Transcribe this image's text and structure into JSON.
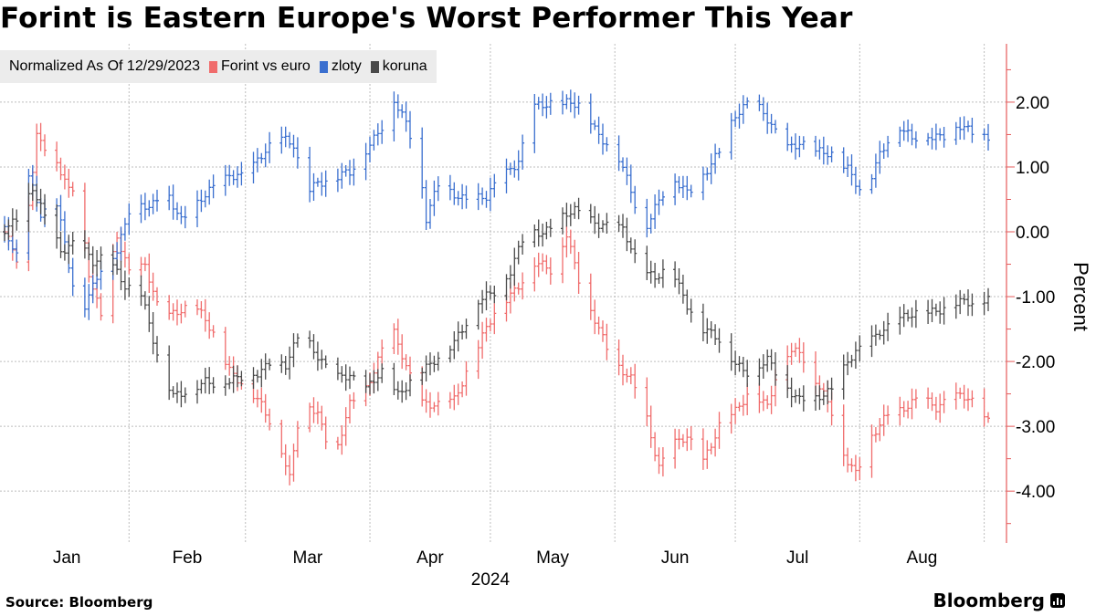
{
  "title": "Forint is Eastern Europe's Worst Performer This Year",
  "legend": {
    "caption": "Normalized As Of 12/29/2023",
    "items": [
      {
        "label": "Forint vs euro",
        "color": "#f06c6c"
      },
      {
        "label": "zloty",
        "color": "#3a6fcf"
      },
      {
        "label": "koruna",
        "color": "#4a4a4a"
      }
    ]
  },
  "footer": {
    "source": "Source: Bloomberg",
    "brand": "Bloomberg"
  },
  "colors": {
    "axis": "#e55a5a",
    "grid": "#bdbdbd"
  },
  "chart_data": {
    "type": "line",
    "style": "ohlc-bars",
    "title": "Forint is Eastern Europe's Worst Performer This Year",
    "subtitle": "Normalized As Of 12/29/2023",
    "ylabel": "Percent",
    "xlabel": "2024",
    "ylim": [
      -4.8,
      2.9
    ],
    "y_ticks": [
      {
        "value": 2,
        "label": "2.00"
      },
      {
        "value": 1,
        "label": "1.00"
      },
      {
        "value": 0,
        "label": "0.00"
      },
      {
        "value": -1,
        "label": "-1.00"
      },
      {
        "value": -2,
        "label": "-2.00"
      },
      {
        "value": -3,
        "label": "-3.00"
      },
      {
        "value": -4,
        "label": "-4.00"
      }
    ],
    "y_axis_side": "right",
    "grid": true,
    "x_start_day": 0,
    "x_end_day": 245,
    "x_labels": [
      "Jan",
      "Feb",
      "Mar",
      "Apr",
      "May",
      "Jun",
      "Jul",
      "Aug"
    ],
    "month_start_days": [
      0,
      31,
      60,
      91,
      121,
      152,
      182,
      213,
      244
    ],
    "year_label": "2024",
    "series": [
      {
        "name": "Forint vs euro",
        "color": "#f06c6c",
        "anchors": [
          [
            0,
            0.0
          ],
          [
            4,
            -0.6
          ],
          [
            8,
            1.5
          ],
          [
            12,
            1.2
          ],
          [
            16,
            0.6
          ],
          [
            18,
            0.7
          ],
          [
            21,
            -0.6
          ],
          [
            24,
            -1.3
          ],
          [
            28,
            -0.1
          ],
          [
            31,
            -0.6
          ],
          [
            35,
            -0.5
          ],
          [
            39,
            -1.4
          ],
          [
            43,
            -1.2
          ],
          [
            47,
            -1.1
          ],
          [
            52,
            -1.6
          ],
          [
            56,
            -2.1
          ],
          [
            60,
            -2.4
          ],
          [
            64,
            -2.7
          ],
          [
            68,
            -3.1
          ],
          [
            71,
            -3.8
          ],
          [
            74,
            -2.6
          ],
          [
            78,
            -2.8
          ],
          [
            82,
            -3.5
          ],
          [
            86,
            -2.7
          ],
          [
            90,
            -2.4
          ],
          [
            94,
            -1.8
          ],
          [
            97,
            -1.6
          ],
          [
            100,
            -2.1
          ],
          [
            104,
            -2.6
          ],
          [
            108,
            -2.7
          ],
          [
            112,
            -2.6
          ],
          [
            116,
            -2.0
          ],
          [
            120,
            -1.5
          ],
          [
            124,
            -1.1
          ],
          [
            128,
            -0.8
          ],
          [
            132,
            -0.5
          ],
          [
            136,
            -0.6
          ],
          [
            140,
            0.0
          ],
          [
            144,
            -1.0
          ],
          [
            148,
            -1.5
          ],
          [
            152,
            -2.0
          ],
          [
            156,
            -2.3
          ],
          [
            160,
            -2.9
          ],
          [
            163,
            -3.6
          ],
          [
            166,
            -3.3
          ],
          [
            170,
            -3.2
          ],
          [
            174,
            -3.5
          ],
          [
            178,
            -3.0
          ],
          [
            182,
            -2.8
          ],
          [
            186,
            -2.4
          ],
          [
            190,
            -2.7
          ],
          [
            194,
            -1.9
          ],
          [
            198,
            -1.8
          ],
          [
            202,
            -2.3
          ],
          [
            206,
            -2.8
          ],
          [
            208,
            -3.3
          ],
          [
            212,
            -3.7
          ],
          [
            216,
            -3.2
          ],
          [
            220,
            -2.8
          ],
          [
            224,
            -2.7
          ],
          [
            228,
            -2.6
          ],
          [
            232,
            -2.7
          ],
          [
            236,
            -2.5
          ],
          [
            240,
            -2.6
          ],
          [
            245,
            -2.9
          ]
        ]
      },
      {
        "name": "zloty",
        "color": "#3a6fcf",
        "anchors": [
          [
            0,
            0.0
          ],
          [
            3,
            -0.4
          ],
          [
            6,
            0.9
          ],
          [
            9,
            0.3
          ],
          [
            13,
            0.4
          ],
          [
            17,
            -0.8
          ],
          [
            20,
            -1.1
          ],
          [
            24,
            -0.6
          ],
          [
            28,
            -0.3
          ],
          [
            32,
            0.6
          ],
          [
            36,
            0.3
          ],
          [
            40,
            0.7
          ],
          [
            44,
            0.2
          ],
          [
            48,
            0.4
          ],
          [
            52,
            0.7
          ],
          [
            56,
            0.9
          ],
          [
            60,
            0.8
          ],
          [
            64,
            1.2
          ],
          [
            68,
            1.5
          ],
          [
            72,
            1.3
          ],
          [
            75,
            0.6
          ],
          [
            78,
            0.8
          ],
          [
            82,
            0.8
          ],
          [
            86,
            0.9
          ],
          [
            90,
            1.3
          ],
          [
            94,
            1.6
          ],
          [
            97,
            2.0
          ],
          [
            100,
            1.7
          ],
          [
            103,
            1.2
          ],
          [
            105,
            0.2
          ],
          [
            108,
            0.7
          ],
          [
            112,
            0.6
          ],
          [
            116,
            0.5
          ],
          [
            120,
            0.5
          ],
          [
            124,
            0.9
          ],
          [
            128,
            1.1
          ],
          [
            132,
            1.9
          ],
          [
            136,
            2.0
          ],
          [
            140,
            2.0
          ],
          [
            144,
            1.9
          ],
          [
            148,
            1.5
          ],
          [
            152,
            1.3
          ],
          [
            156,
            0.6
          ],
          [
            159,
            0.0
          ],
          [
            162,
            0.4
          ],
          [
            166,
            0.8
          ],
          [
            170,
            0.6
          ],
          [
            174,
            0.9
          ],
          [
            178,
            1.2
          ],
          [
            182,
            1.8
          ],
          [
            186,
            2.1
          ],
          [
            190,
            1.7
          ],
          [
            194,
            1.3
          ],
          [
            198,
            1.4
          ],
          [
            202,
            1.2
          ],
          [
            206,
            1.2
          ],
          [
            210,
            1.0
          ],
          [
            214,
            0.5
          ],
          [
            218,
            1.2
          ],
          [
            222,
            1.7
          ],
          [
            226,
            1.4
          ],
          [
            230,
            1.5
          ],
          [
            234,
            1.5
          ],
          [
            238,
            1.6
          ],
          [
            242,
            1.5
          ],
          [
            245,
            1.5
          ]
        ]
      },
      {
        "name": "koruna",
        "color": "#4a4a4a",
        "anchors": [
          [
            0,
            0.0
          ],
          [
            3,
            0.2
          ],
          [
            7,
            0.7
          ],
          [
            10,
            0.2
          ],
          [
            14,
            -0.3
          ],
          [
            18,
            -0.1
          ],
          [
            22,
            -0.5
          ],
          [
            26,
            -0.4
          ],
          [
            30,
            -0.8
          ],
          [
            34,
            -1.0
          ],
          [
            38,
            -1.9
          ],
          [
            42,
            -2.5
          ],
          [
            46,
            -2.5
          ],
          [
            50,
            -2.3
          ],
          [
            54,
            -2.3
          ],
          [
            58,
            -2.3
          ],
          [
            62,
            -2.2
          ],
          [
            66,
            -2.0
          ],
          [
            70,
            -2.1
          ],
          [
            74,
            -1.5
          ],
          [
            78,
            -1.9
          ],
          [
            82,
            -2.3
          ],
          [
            86,
            -2.2
          ],
          [
            90,
            -2.4
          ],
          [
            94,
            -2.2
          ],
          [
            98,
            -2.5
          ],
          [
            102,
            -2.2
          ],
          [
            106,
            -2.1
          ],
          [
            110,
            -1.8
          ],
          [
            114,
            -1.5
          ],
          [
            118,
            -1.1
          ],
          [
            122,
            -0.9
          ],
          [
            126,
            -0.6
          ],
          [
            130,
            0.0
          ],
          [
            134,
            0.0
          ],
          [
            138,
            0.2
          ],
          [
            142,
            0.3
          ],
          [
            146,
            0.2
          ],
          [
            150,
            0.1
          ],
          [
            154,
            0.0
          ],
          [
            158,
            -0.5
          ],
          [
            162,
            -0.7
          ],
          [
            166,
            -0.6
          ],
          [
            170,
            -1.1
          ],
          [
            174,
            -1.5
          ],
          [
            178,
            -1.7
          ],
          [
            182,
            -2.0
          ],
          [
            186,
            -2.2
          ],
          [
            190,
            -2.0
          ],
          [
            194,
            -2.3
          ],
          [
            198,
            -2.6
          ],
          [
            202,
            -2.6
          ],
          [
            206,
            -2.4
          ],
          [
            210,
            -2.0
          ],
          [
            214,
            -1.8
          ],
          [
            218,
            -1.5
          ],
          [
            222,
            -1.4
          ],
          [
            226,
            -1.3
          ],
          [
            230,
            -1.2
          ],
          [
            234,
            -1.2
          ],
          [
            238,
            -1.1
          ],
          [
            245,
            -1.0
          ]
        ]
      }
    ]
  }
}
